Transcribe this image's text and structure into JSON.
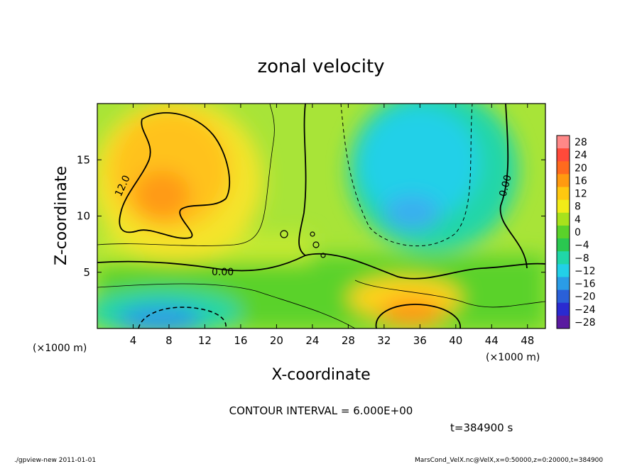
{
  "chart_data": {
    "type": "heatmap",
    "title": "zonal velocity",
    "xlabel": "X-coordinate",
    "ylabel": "Z-coordinate",
    "x_unit": "(×1000 m)",
    "y_unit": "(×1000 m)",
    "xlim": [
      0,
      50
    ],
    "ylim": [
      0,
      20
    ],
    "x_ticks": [
      4,
      8,
      12,
      16,
      20,
      24,
      28,
      32,
      36,
      40,
      44,
      48
    ],
    "y_ticks": [
      5,
      10,
      15
    ],
    "colorbar_levels": [
      28,
      24,
      20,
      16,
      12,
      8,
      4,
      0,
      -4,
      -8,
      -12,
      -16,
      -20,
      -24,
      -28
    ],
    "colorbar_colors": [
      "#ff8888",
      "#ff4a3a",
      "#ff6a1e",
      "#ff9a10",
      "#ffc810",
      "#f2ec18",
      "#a8e21c",
      "#5ad22a",
      "#2ac850",
      "#20d6a8",
      "#22d0e8",
      "#2a9ce6",
      "#2a60d8",
      "#2a2ad0",
      "#5a1aa0"
    ],
    "contour_labels": [
      "12.0",
      "0.00",
      "0.00"
    ],
    "contour_interval": "CONTOUR INTERVAL = 6.000E+00",
    "time": "t=384900 s",
    "grid": false,
    "legend": "right",
    "field_features": [
      {
        "name": "eastward maximum upper-left",
        "x": 8,
        "z": 13,
        "value": 15
      },
      {
        "name": "eastward maximum lower-right",
        "x": 36,
        "z": 1,
        "value": 16
      },
      {
        "name": "westward minimum upper-right",
        "x": 35,
        "z": 11,
        "value": -10
      },
      {
        "name": "westward minimum lower-left",
        "x": 7,
        "z": 0.8,
        "value": -14
      }
    ]
  },
  "footer": {
    "left": "./gpview-new   2011-01-01",
    "right": "MarsCond_VelX.nc@VelX,x=0:50000,z=0:20000,t=384900"
  }
}
